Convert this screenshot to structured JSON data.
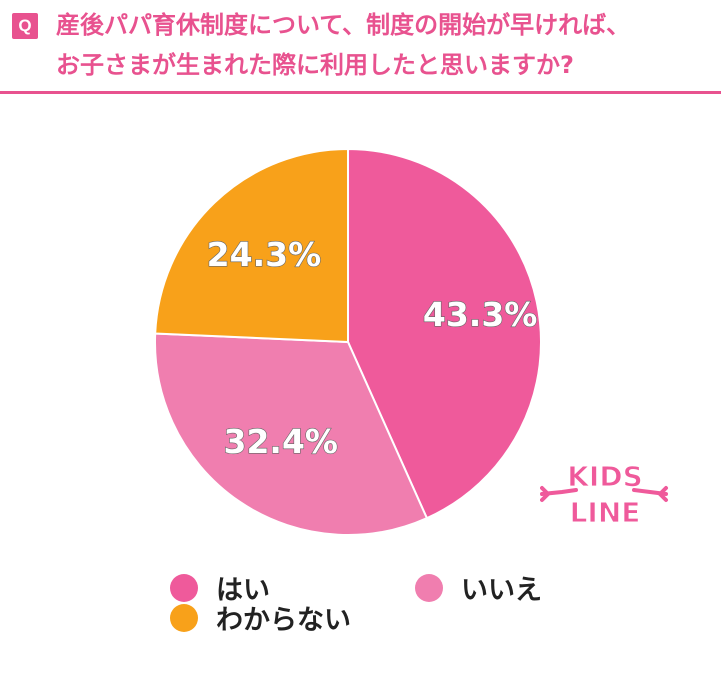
{
  "question": {
    "badge": "Q",
    "line1": "産後パパ育休制度について、制度の開始が早ければ、",
    "line2": "お子さまが生まれた際に利用したと思いますか?"
  },
  "chart_data": {
    "type": "pie",
    "start_angle_deg": 0,
    "direction": "clockwise",
    "slices": [
      {
        "name": "はい",
        "value": 43.3,
        "label": "43.3%",
        "color": "#ef5a9b"
      },
      {
        "name": "いいえ",
        "value": 32.4,
        "label": "32.4%",
        "color": "#f07eaf"
      },
      {
        "name": "わからない",
        "value": 24.3,
        "label": "24.3%",
        "color": "#f8a11a"
      }
    ]
  },
  "legend": {
    "items": [
      {
        "label": "はい",
        "color": "#ef5a9b"
      },
      {
        "label": "いいえ",
        "color": "#f07eaf"
      },
      {
        "label": "わからない",
        "color": "#f8a11a"
      }
    ]
  },
  "logo": {
    "line1": "KIDS",
    "line2": "LINE"
  }
}
